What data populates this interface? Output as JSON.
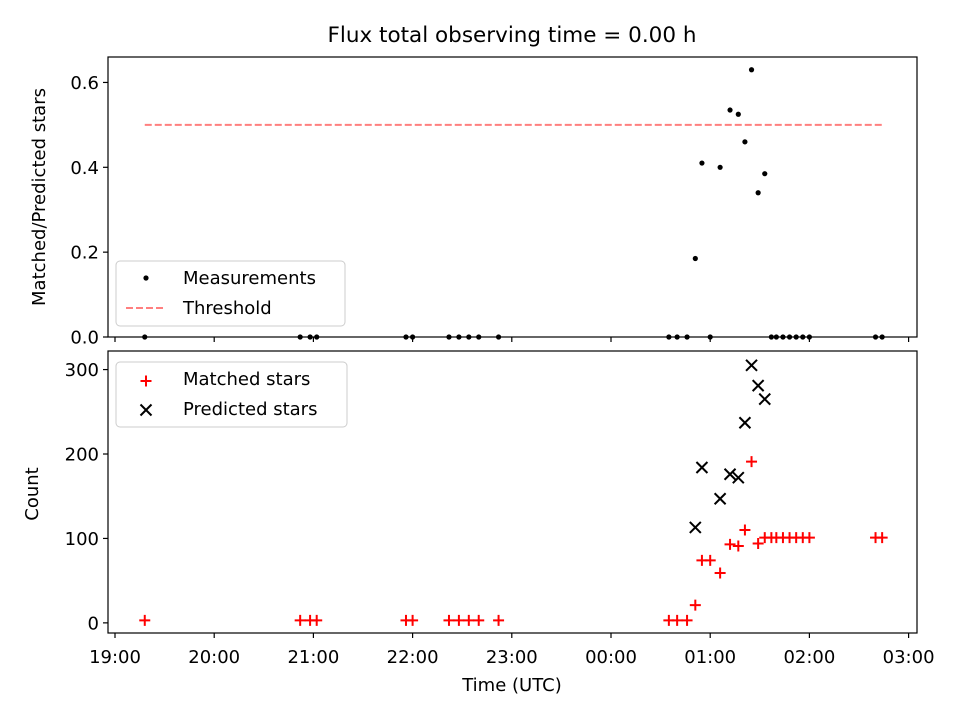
{
  "chart_data": [
    {
      "type": "scatter",
      "title": "Flux total observing time = 0.00 h",
      "xlabel": "",
      "ylabel": "Matched/Predicted stars",
      "ylim": [
        0,
        0.66
      ],
      "yticks": [
        0.0,
        0.2,
        0.4,
        0.6
      ],
      "ytick_labels": [
        "0.0",
        "0.2",
        "0.4",
        "0.6"
      ],
      "legend": {
        "placement": "lower-left",
        "entries": [
          "Measurements",
          "Threshold"
        ]
      },
      "grid": false,
      "series": [
        {
          "name": "Measurements",
          "marker": "dot",
          "color": "#000000",
          "x": [
            "19:18",
            "20:52",
            "20:58",
            "21:02",
            "21:56",
            "22:00",
            "22:22",
            "22:28",
            "22:34",
            "22:40",
            "22:52",
            "00:35",
            "00:40",
            "00:46",
            "00:51",
            "00:55",
            "01:00",
            "01:06",
            "01:12",
            "01:17",
            "01:21",
            "01:25",
            "01:29",
            "01:33",
            "01:37",
            "01:40",
            "01:44",
            "01:48",
            "01:52",
            "01:56",
            "02:00",
            "02:40",
            "02:44"
          ],
          "y": [
            0,
            0,
            0,
            0,
            0,
            0,
            0,
            0,
            0,
            0,
            0,
            0,
            0,
            0,
            0.185,
            0.41,
            0,
            0.4,
            0.535,
            0.525,
            0.46,
            0.63,
            0.34,
            0.385,
            0,
            0,
            0,
            0,
            0,
            0,
            0,
            0,
            0
          ]
        },
        {
          "name": "Threshold",
          "line": "dashed",
          "color": "#ff7f7f",
          "x": [
            "19:18",
            "02:44"
          ],
          "y": [
            0.5,
            0.5
          ]
        }
      ]
    },
    {
      "type": "scatter",
      "title": "",
      "xlabel": "Time (UTC)",
      "ylabel": "Count",
      "ylim": [
        -12,
        322
      ],
      "yticks": [
        0,
        100,
        200,
        300
      ],
      "ytick_labels": [
        "0",
        "100",
        "200",
        "300"
      ],
      "xticks": [
        "19:00",
        "20:00",
        "21:00",
        "22:00",
        "23:00",
        "00:00",
        "01:00",
        "02:00",
        "03:00"
      ],
      "legend": {
        "placement": "upper-left",
        "entries": [
          "Matched stars",
          "Predicted stars"
        ]
      },
      "grid": false,
      "series": [
        {
          "name": "Matched stars",
          "marker": "plus",
          "color": "#ff0000",
          "x": [
            "19:18",
            "20:52",
            "20:58",
            "21:02",
            "21:56",
            "22:00",
            "22:22",
            "22:28",
            "22:34",
            "22:40",
            "22:52",
            "00:35",
            "00:40",
            "00:46",
            "00:51",
            "00:55",
            "01:00",
            "01:06",
            "01:12",
            "01:17",
            "01:21",
            "01:25",
            "01:29",
            "01:33",
            "01:37",
            "01:40",
            "01:44",
            "01:48",
            "01:52",
            "01:56",
            "02:00",
            "02:40",
            "02:44"
          ],
          "y": [
            3,
            3,
            3,
            3,
            3,
            3,
            3,
            3,
            3,
            3,
            3,
            3,
            3,
            3,
            21,
            74,
            74,
            59,
            93,
            91,
            110,
            191,
            94,
            101,
            101,
            101,
            101,
            101,
            101,
            101,
            101,
            101,
            101
          ]
        },
        {
          "name": "Predicted stars",
          "marker": "x",
          "color": "#000000",
          "x": [
            "00:51",
            "00:55",
            "01:06",
            "01:12",
            "01:17",
            "01:21",
            "01:25",
            "01:29",
            "01:33"
          ],
          "y": [
            113,
            184,
            147,
            176,
            172,
            237,
            305,
            281,
            265
          ]
        }
      ]
    }
  ]
}
